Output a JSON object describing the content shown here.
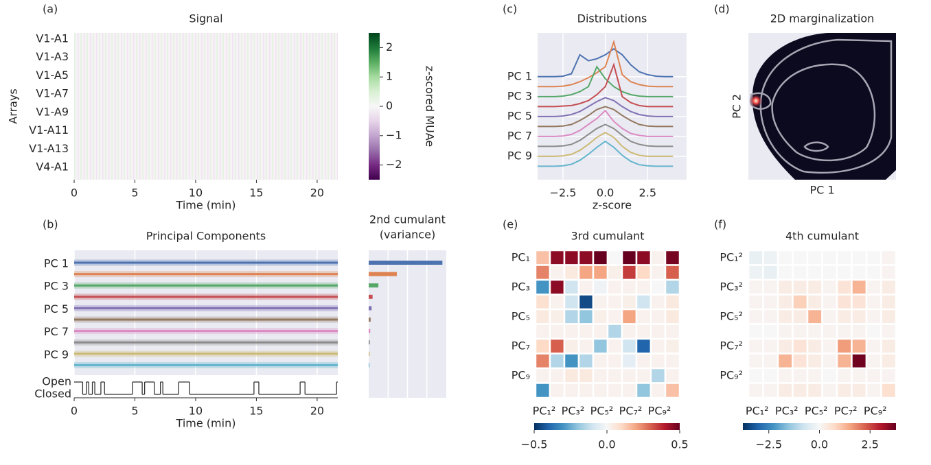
{
  "panel_labels": [
    "(a)",
    "(b)",
    "(c)",
    "(d)",
    "(e)",
    "(f)"
  ],
  "chart_data": [
    {
      "type": "heatmap",
      "title": "Signal",
      "xlabel": "Time (min)",
      "ylabel": "Arrays",
      "categories": [
        "V1-A1",
        "V1-A3",
        "V1-A5",
        "V1-A7",
        "V1-A9",
        "V1-A11",
        "V1-A13",
        "V4-A1"
      ],
      "xlim": [
        0,
        21.7
      ],
      "xticks": [
        0,
        5,
        10,
        15,
        20
      ],
      "colormap": "PRGn",
      "colorbar": {
        "label": "z-scored MUAe",
        "lim": [
          -2.5,
          2.5
        ],
        "ticks": [
          {
            "value": -2,
            "label": "−2"
          },
          {
            "value": -1,
            "label": "−1"
          },
          0,
          1,
          2
        ]
      }
    },
    {
      "type": "traces",
      "title": "Principal Components",
      "xlabel": "Time (min)",
      "xlim": [
        0,
        21.7
      ],
      "xticks": [
        0,
        5,
        10,
        15,
        20
      ],
      "categories": [
        "PC 1",
        null,
        "PC 3",
        null,
        "PC 5",
        null,
        "PC 7",
        null,
        "PC 9",
        null
      ],
      "colors": [
        "#4c72b0",
        "#dd8452",
        "#55a868",
        "#c44e52",
        "#8172b3",
        "#937860",
        "#da8bc3",
        "#8c8c8c",
        "#ccb974",
        "#64b5cd"
      ],
      "states": {
        "categories": [
          "Open",
          "Closed"
        ],
        "x": [
          0,
          0.7,
          1.0,
          1.2,
          1.5,
          1.7,
          2.2,
          2.5,
          4.8,
          5.6,
          5.8,
          6.6,
          7.1,
          7.3,
          8.6,
          9.5,
          14.8,
          15.2,
          18.6,
          19.0,
          21.6
        ],
        "values": [
          1,
          0,
          1,
          0,
          1,
          0,
          1,
          0,
          1,
          0,
          1,
          0,
          1,
          0,
          1,
          0,
          1,
          0,
          1,
          0,
          1
        ]
      }
    },
    {
      "type": "barh",
      "title": [
        "2nd cumulant",
        "(variance)"
      ],
      "values": [
        3.8,
        1.45,
        0.5,
        0.2,
        0.15,
        0.1,
        0.08,
        0.06,
        0.05,
        0.04
      ],
      "colors": [
        "#4c72b0",
        "#dd8452",
        "#55a868",
        "#c44e52",
        "#8172b3",
        "#937860",
        "#da8bc3",
        "#8c8c8c",
        "#ccb974",
        "#64b5cd"
      ],
      "xlim": [
        0,
        4
      ],
      "xticks": [
        1,
        2,
        3
      ],
      "xticklabels": false
    },
    {
      "type": "ridge",
      "title": "Distributions",
      "xlabel": "z-score",
      "xlim": [
        -4,
        4.8
      ],
      "xticks": [
        {
          "value": -2.5,
          "label": "−2.5"
        },
        {
          "value": 0,
          "label": "0.0"
        },
        2.5
      ],
      "ylim": [
        -4.4,
        10.35
      ],
      "categories": [
        "PC 1",
        null,
        "PC 3",
        null,
        "PC 5",
        null,
        "PC 7",
        null,
        "PC 9",
        null
      ],
      "x": [
        -4,
        -3.5,
        -3,
        -2.5,
        -2,
        -1.5,
        -1,
        -0.5,
        0,
        0.5,
        1,
        1.5,
        2,
        2.5,
        3,
        3.5,
        4
      ],
      "series": [
        {
          "color": "#4c72b0",
          "values": [
            0,
            0,
            0,
            0.05,
            0.3,
            2.2,
            1.6,
            1.8,
            2.2,
            2.8,
            2.2,
            1.2,
            0.5,
            0.2,
            0.05,
            0,
            0
          ]
        },
        {
          "color": "#dd8452",
          "values": [
            0,
            0,
            0,
            0.05,
            0.2,
            0.5,
            0.9,
            1.4,
            2.0,
            4.5,
            1.2,
            0.5,
            0.2,
            0.05,
            0,
            0,
            0
          ]
        },
        {
          "color": "#55a868",
          "values": [
            0,
            0,
            0,
            0.05,
            0.2,
            0.5,
            1.0,
            3.0,
            1.8,
            1.0,
            0.5,
            0.2,
            0.05,
            0,
            0,
            0,
            0
          ]
        },
        {
          "color": "#c44e52",
          "values": [
            0,
            0,
            0,
            0.05,
            0.1,
            0.3,
            0.6,
            1.2,
            2.0,
            4.2,
            1.0,
            0.4,
            0.1,
            0,
            0,
            0,
            0
          ]
        },
        {
          "color": "#8172b3",
          "values": [
            0,
            0,
            0,
            0.05,
            0.2,
            0.5,
            1.0,
            1.5,
            1.9,
            1.6,
            1.0,
            0.5,
            0.2,
            0.05,
            0,
            0,
            0
          ]
        },
        {
          "color": "#937860",
          "values": [
            0,
            0,
            0,
            0.05,
            0.2,
            0.6,
            1.1,
            1.7,
            2.0,
            1.7,
            1.1,
            0.6,
            0.2,
            0.05,
            0,
            0,
            0
          ]
        },
        {
          "color": "#da8bc3",
          "values": [
            0,
            0,
            0,
            0.05,
            0.2,
            0.6,
            1.2,
            1.8,
            2.6,
            1.5,
            0.8,
            0.3,
            0.1,
            0,
            0,
            0,
            0
          ]
        },
        {
          "color": "#8c8c8c",
          "values": [
            0,
            0,
            0,
            0.05,
            0.2,
            0.6,
            1.2,
            1.8,
            2.2,
            1.8,
            1.1,
            0.5,
            0.2,
            0.05,
            0,
            0,
            0
          ]
        },
        {
          "color": "#ccb974",
          "values": [
            0,
            0,
            0,
            0.05,
            0.2,
            0.6,
            1.2,
            1.9,
            2.4,
            1.9,
            1.0,
            0.4,
            0.1,
            0,
            0,
            0,
            0
          ]
        },
        {
          "color": "#64b5cd",
          "values": [
            0,
            0,
            0,
            0.05,
            0.2,
            0.6,
            1.2,
            1.9,
            2.5,
            1.9,
            1.1,
            0.5,
            0.15,
            0.05,
            0,
            0,
            0
          ]
        }
      ]
    },
    {
      "type": "density2d",
      "title": "2D marginalization",
      "xlabel": "PC 1",
      "ylabel": "PC 2"
    },
    {
      "type": "matrix",
      "title": "3rd cumulant",
      "colormap": "RdBu_r",
      "rows": [
        "PC₁",
        null,
        "PC₃",
        null,
        "PC₅",
        null,
        "PC₇",
        null,
        "PC₉",
        null
      ],
      "columns": [
        "PC₁²",
        null,
        "PC₃²",
        null,
        "PC₅²",
        null,
        "PC₇²",
        null,
        "PC₉²",
        null
      ],
      "values": [
        [
          0.15,
          0.45,
          0.45,
          0.45,
          0.5,
          0,
          0.5,
          0.45,
          0.02,
          0.48
        ],
        [
          0.25,
          0.02,
          0.05,
          0.2,
          0.2,
          0.03,
          0.35,
          0.1,
          0.02,
          0.3
        ],
        [
          -0.3,
          0.45,
          -0.1,
          0.02,
          -0.02,
          0.02,
          0.02,
          0.02,
          0,
          -0.15
        ],
        [
          0.08,
          0.02,
          -0.1,
          -0.45,
          0.02,
          0.02,
          0.03,
          -0.1,
          0.02,
          0.05
        ],
        [
          0.05,
          0.03,
          -0.15,
          -0.2,
          0.03,
          0.02,
          0.2,
          0.02,
          0.02,
          0.05
        ],
        [
          0.02,
          0.02,
          0.02,
          0.02,
          0.02,
          -0.15,
          0.02,
          0.02,
          0.02,
          0.02
        ],
        [
          0.1,
          0.3,
          0.03,
          0.02,
          -0.2,
          0.02,
          -0.1,
          -0.4,
          0.02,
          0.03
        ],
        [
          0.25,
          -0.15,
          -0.3,
          -0.15,
          0.02,
          0.02,
          -0.05,
          0.02,
          0.02,
          0.02
        ],
        [
          0.02,
          0.02,
          0.05,
          0.05,
          0.02,
          0.02,
          0.02,
          0.02,
          -0.15,
          0.02
        ],
        [
          -0.3,
          0.02,
          0.02,
          0.02,
          0.02,
          0.02,
          0.02,
          -0.2,
          0.02,
          0.15
        ]
      ],
      "colorbar": {
        "lim": [
          -0.5,
          0.5
        ],
        "ticks": [
          {
            "value": -0.5,
            "label": "−0.5"
          },
          {
            "value": 0,
            "label": "0.0"
          },
          0.5
        ]
      }
    },
    {
      "type": "matrix",
      "title": "4th cumulant",
      "colormap": "RdBu_r",
      "rows": [
        "PC₁²",
        null,
        "PC₃²",
        null,
        "PC₅²",
        null,
        "PC₇²",
        null,
        "PC₉²",
        null
      ],
      "columns": [
        "PC₁²",
        null,
        "PC₃²",
        null,
        "PC₅²",
        null,
        "PC₇²",
        null,
        "PC₉²",
        null
      ],
      "values": [
        [
          -0.3,
          -0.2,
          0,
          0,
          0,
          0,
          0,
          0,
          0,
          0.1
        ],
        [
          -0.2,
          -0.3,
          0,
          0,
          0,
          0,
          0,
          0,
          0,
          0.1
        ],
        [
          0.1,
          0.1,
          0.3,
          0.3,
          0.3,
          0.1,
          0.5,
          1.3,
          0.1,
          0.3
        ],
        [
          0.1,
          0.1,
          0.3,
          0.9,
          0.3,
          0.1,
          0.5,
          0.5,
          0.1,
          0.3
        ],
        [
          0.1,
          0.1,
          0.3,
          0.3,
          1.3,
          0.1,
          0.3,
          0.3,
          0.1,
          0.3
        ],
        [
          0,
          0,
          0.1,
          0.1,
          0.1,
          0.1,
          0.1,
          0.1,
          0,
          0.1
        ],
        [
          0.1,
          0.1,
          0.3,
          0.5,
          0.3,
          0.1,
          1.6,
          1.3,
          0.1,
          0.3
        ],
        [
          0.1,
          0.1,
          1.3,
          0.5,
          0.3,
          0.1,
          1.3,
          3.7,
          0.1,
          0.3
        ],
        [
          0,
          0,
          0.1,
          0.1,
          0.1,
          0,
          0.1,
          0.1,
          0.1,
          0.1
        ],
        [
          0.1,
          0.1,
          0.3,
          0.3,
          0.3,
          0.1,
          0.3,
          0.3,
          0.1,
          0.6
        ]
      ],
      "colorbar": {
        "lim": [
          -3.78,
          3.78
        ],
        "ticks": [
          {
            "value": -2.5,
            "label": "−2.5"
          },
          {
            "value": 0,
            "label": "0.0"
          },
          2.5
        ]
      }
    }
  ]
}
